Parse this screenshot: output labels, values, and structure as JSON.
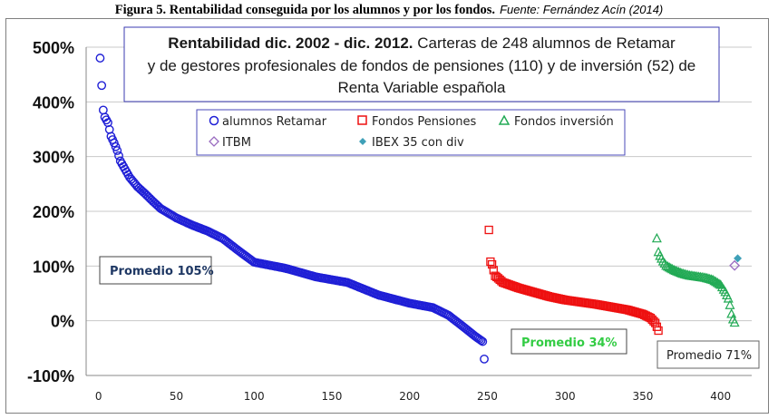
{
  "caption": {
    "main": "Figura 5. Rentabilidad conseguida por los alumnos y por los fondos.",
    "source": "Fuente: Fernández Acín (2014)"
  },
  "chart_data": {
    "type": "scatter",
    "title_bold": "Rentabilidad dic. 2002 - dic. 2012.",
    "title_rest": "Carteras de 248 alumnos de Retamar",
    "title_line2": "y de gestores profesionales de fondos de pensiones (110) y de inversión (52) de",
    "title_line3": "Renta Variable española",
    "xlim": [
      -8,
      420
    ],
    "ylim": [
      -100,
      500
    ],
    "x_ticks": [
      0,
      50,
      100,
      150,
      200,
      250,
      300,
      350,
      400
    ],
    "y_ticks": [
      -100,
      0,
      100,
      200,
      300,
      400,
      500
    ],
    "y_tick_labels": [
      "-100%",
      "0%",
      "100%",
      "200%",
      "300%",
      "400%",
      "500%"
    ],
    "grid": "horizontal",
    "legend_position": "top-center",
    "series": [
      {
        "name": "alumnos Retamar",
        "marker": "circle",
        "color": "#1f1fd6",
        "anchors": [
          [
            1,
            480
          ],
          [
            2,
            430
          ],
          [
            3,
            385
          ],
          [
            4,
            372
          ],
          [
            6,
            362
          ],
          [
            8,
            337
          ],
          [
            10,
            325
          ],
          [
            12,
            311
          ],
          [
            14,
            292
          ],
          [
            18,
            272
          ],
          [
            20,
            262
          ],
          [
            25,
            245
          ],
          [
            30,
            232
          ],
          [
            35,
            218
          ],
          [
            40,
            205
          ],
          [
            50,
            188
          ],
          [
            60,
            175
          ],
          [
            70,
            164
          ],
          [
            80,
            150
          ],
          [
            90,
            128
          ],
          [
            100,
            107
          ],
          [
            120,
            96
          ],
          [
            140,
            80
          ],
          [
            160,
            70
          ],
          [
            180,
            47
          ],
          [
            200,
            32
          ],
          [
            215,
            24
          ],
          [
            225,
            10
          ],
          [
            235,
            -12
          ],
          [
            242,
            -28
          ],
          [
            247,
            -38
          ],
          [
            248,
            -70
          ]
        ],
        "x_range": [
          1,
          248
        ]
      },
      {
        "name": "Fondos Pensiones",
        "marker": "square",
        "color": "#ee1111",
        "anchors": [
          [
            251,
            166
          ],
          [
            252,
            108
          ],
          [
            253,
            103
          ],
          [
            255,
            82
          ],
          [
            256,
            80
          ],
          [
            260,
            70
          ],
          [
            270,
            60
          ],
          [
            280,
            52
          ],
          [
            290,
            44
          ],
          [
            300,
            38
          ],
          [
            320,
            30
          ],
          [
            340,
            20
          ],
          [
            350,
            12
          ],
          [
            355,
            5
          ],
          [
            358,
            -4
          ],
          [
            360,
            -18
          ]
        ],
        "x_range": [
          251,
          360
        ]
      },
      {
        "name": "Fondos inversión",
        "marker": "triangle",
        "color": "#22aa55",
        "anchors": [
          [
            359,
            150
          ],
          [
            360,
            125
          ],
          [
            361,
            118
          ],
          [
            363,
            108
          ],
          [
            365,
            100
          ],
          [
            370,
            92
          ],
          [
            375,
            86
          ],
          [
            380,
            82
          ],
          [
            390,
            78
          ],
          [
            395,
            74
          ],
          [
            400,
            65
          ],
          [
            403,
            52
          ],
          [
            405,
            40
          ],
          [
            406,
            28
          ],
          [
            407,
            12
          ],
          [
            408,
            2
          ],
          [
            409,
            -4
          ]
        ],
        "x_range": [
          359,
          409
        ]
      },
      {
        "name": "ITBM",
        "marker": "diamond-open",
        "color": "#9a6cc0",
        "points": [
          [
            409,
            101
          ]
        ]
      },
      {
        "name": "IBEX 35 con div",
        "marker": "diamond-filled",
        "color": "#3fa0b8",
        "points": [
          [
            411,
            114
          ]
        ]
      }
    ],
    "annotations": [
      {
        "text": "Promedio 105%",
        "color": "#1f3864"
      },
      {
        "text": "Promedio 34%",
        "color": "#33cc44"
      },
      {
        "text": "Promedio 71%",
        "color": "#222222"
      }
    ]
  }
}
